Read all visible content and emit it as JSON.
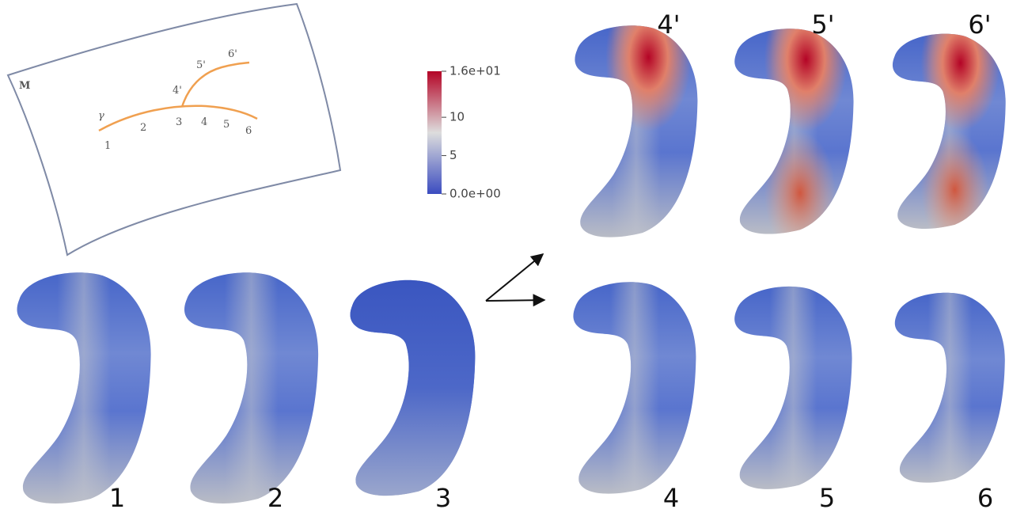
{
  "sketch": {
    "manifold_label": "M",
    "curve_label": "γ",
    "points": [
      "1",
      "2",
      "3",
      "4",
      "5",
      "6"
    ],
    "branch_points": [
      "4'",
      "5'",
      "6'"
    ]
  },
  "colorbar": {
    "min": 0,
    "max": 16,
    "ticks": [
      {
        "value": 16,
        "label": "1.6e+01"
      },
      10,
      5,
      {
        "value": 0,
        "label": "0.0e+00"
      }
    ]
  },
  "shapes": {
    "bottom": [
      "1",
      "2",
      "3",
      "4",
      "5",
      "6"
    ],
    "top": [
      "4'",
      "5'",
      "6'"
    ]
  }
}
